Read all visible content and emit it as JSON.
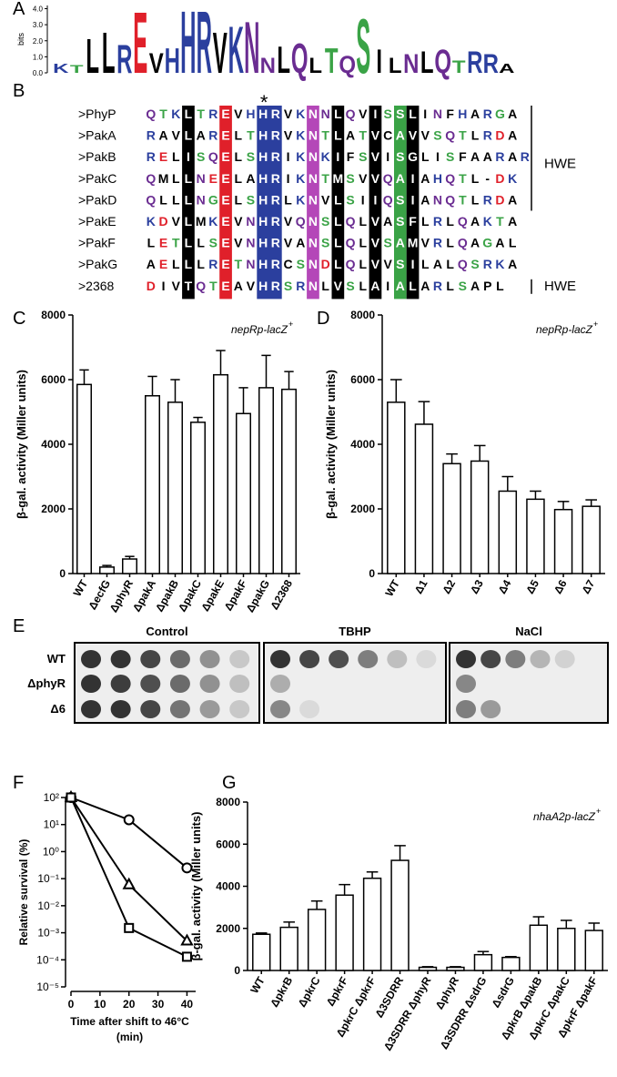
{
  "panel_labels": [
    "A",
    "B",
    "C",
    "D",
    "E",
    "F",
    "G"
  ],
  "alignment": {
    "marker": "*",
    "group_label": "HWE",
    "rows": [
      {
        "name": ">PhyP",
        "sequence": "QTKLTREVHHRVKNNLQVISSLINFHARGA"
      },
      {
        "name": ">PakA",
        "sequence": "RAVLARELTHRVKNTLATVCAVVSQTLRDA"
      },
      {
        "name": ">PakB",
        "sequence": "RELISQELSHRIKNKIFSVISGLISFAARAR"
      },
      {
        "name": ">PakC",
        "sequence": "QMLLNEELAHRIKNTMSVVQAIAHQTL-DK"
      },
      {
        "name": ">PakD",
        "sequence": "QLLLNGELSHRLKNVLSIIQSIANQTLRDA"
      },
      {
        "name": ">PakE",
        "sequence": "KDVLMKEVNHRVQNSLQLVASFLRLQAKTA"
      },
      {
        "name": ">PakF",
        "sequence": "LETLLSEVNHRVANSLQLVSAMVRLQAGAL"
      },
      {
        "name": ">PakG",
        "sequence": "AELLLRETNHRCSNDLQLVVSILALQSRKA"
      },
      {
        "name": ">2368",
        "sequence": "DIVTQTEAVHRSRNLVSLAIALARLSAPL"
      }
    ]
  },
  "plates": {
    "conditions": [
      "Control",
      "TBHP",
      "NaCl"
    ],
    "strains": [
      "WT",
      "ΔphyR",
      "Δ6"
    ]
  },
  "chart_data": [
    {
      "type": "logo",
      "ylabel": "bits",
      "ylim": [
        0,
        4.2
      ],
      "yticks": [
        {
          "value": 0,
          "label": "0.0"
        },
        {
          "value": 1,
          "label": "1.0"
        },
        {
          "value": 2,
          "label": "2.0"
        },
        {
          "value": 3,
          "label": "3.0"
        },
        {
          "value": 4,
          "label": "4.0"
        }
      ],
      "letters": [
        "K",
        "T",
        "L",
        "L",
        "R",
        "E",
        "V",
        "H",
        "H",
        "R",
        "V",
        "K",
        "N",
        "N",
        "L",
        "Q",
        "L",
        "T",
        "Q",
        "S",
        "I",
        "L",
        "N",
        "L",
        "Q",
        "T",
        "R",
        "R",
        "A"
      ],
      "heights": [
        0.6,
        0.5,
        2.2,
        2.6,
        1.8,
        3.9,
        1.3,
        1.6,
        4.0,
        4.0,
        2.6,
        3.0,
        3.3,
        1.0,
        1.7,
        1.9,
        1.0,
        1.6,
        1.1,
        3.5,
        1.5,
        1.0,
        1.2,
        1.4,
        1.5,
        0.8,
        1.4,
        1.2,
        0.6
      ]
    },
    {
      "type": "bar",
      "ylabel": "β-gal. activity  (Miller units)",
      "annotation": "nepRp-lacZ",
      "annotation_sup": "+",
      "categories": [
        "WT",
        "ΔecfG",
        "ΔphyR",
        "ΔpakA",
        "ΔpakB",
        "ΔpakC",
        "ΔpakE",
        "ΔpakF",
        "ΔpakG",
        "Δ2368"
      ],
      "values": [
        5850,
        200,
        450,
        5500,
        5300,
        4680,
        6150,
        4950,
        5750,
        5700
      ],
      "errors": [
        450,
        50,
        80,
        600,
        700,
        150,
        750,
        800,
        1000,
        550
      ],
      "ylim": [
        0,
        8000
      ],
      "yticks": [
        0,
        2000,
        4000,
        6000,
        8000
      ]
    },
    {
      "type": "bar",
      "ylabel": "β-gal. activity  (Miller units)",
      "annotation": "nepRp-lacZ",
      "annotation_sup": "+",
      "categories": [
        "WT",
        "Δ1",
        "Δ2",
        "Δ3",
        "Δ4",
        "Δ5",
        "Δ6",
        "Δ7"
      ],
      "values": [
        5300,
        4620,
        3400,
        3480,
        2550,
        2300,
        1980,
        2080
      ],
      "errors": [
        700,
        700,
        300,
        480,
        450,
        250,
        250,
        200
      ],
      "ylim": [
        0,
        8000
      ],
      "yticks": [
        0,
        2000,
        4000,
        6000,
        8000
      ]
    },
    {
      "type": "line",
      "log_y": true,
      "ylabel": "Relative survival (%)",
      "xlabel": [
        "Time after shift to 46°C",
        "(min)"
      ],
      "x": [
        0,
        20,
        40
      ],
      "xlim": [
        0,
        43
      ],
      "xticks": [
        0,
        10,
        20,
        30,
        40
      ],
      "ylim": [
        1e-05,
        100
      ],
      "yticks": [
        {
          "value": 100,
          "label": "10²"
        },
        {
          "value": 10,
          "label": "10¹"
        },
        {
          "value": 1,
          "label": "10⁰"
        },
        {
          "value": 0.1,
          "label": "10⁻¹"
        },
        {
          "value": 0.01,
          "label": "10⁻²"
        },
        {
          "value": 0.001,
          "label": "10⁻³"
        },
        {
          "value": 0.0001,
          "label": "10⁻⁴"
        },
        {
          "value": 1e-05,
          "label": "10⁻⁵"
        }
      ],
      "series": [
        {
          "marker": "circle",
          "color": "#000000",
          "values": [
            100,
            15,
            0.25
          ]
        },
        {
          "marker": "triangle",
          "color": "#000000",
          "values": [
            100,
            0.06,
            0.0005
          ]
        },
        {
          "marker": "square",
          "color": "#000000",
          "values": [
            100,
            0.0015,
            0.00013
          ]
        }
      ]
    },
    {
      "type": "bar",
      "ylabel": "β-gal. activity  (Miller units)",
      "annotation": "nhaA2p-lacZ",
      "annotation_sup": "+",
      "categories": [
        "WT",
        "ΔpkrB",
        "ΔpkrC",
        "ΔpkrF",
        "ΔpkrC ΔpkrF",
        "Δ3SDRR",
        "Δ3SDRR ΔphyR",
        "ΔphyR",
        "Δ3SDRR ΔsdrG",
        "ΔsdrG",
        "ΔpkrB ΔpakB",
        "ΔpkrC ΔpakC",
        "ΔpkrF ΔpakF"
      ],
      "values": [
        1720,
        2050,
        2900,
        3580,
        4380,
        5230,
        150,
        150,
        750,
        620,
        2150,
        2000,
        1900
      ],
      "errors": [
        60,
        250,
        400,
        500,
        300,
        700,
        30,
        30,
        150,
        40,
        400,
        380,
        350
      ],
      "ylim": [
        0,
        8000
      ],
      "yticks": [
        0,
        2000,
        4000,
        6000,
        8000
      ]
    }
  ]
}
